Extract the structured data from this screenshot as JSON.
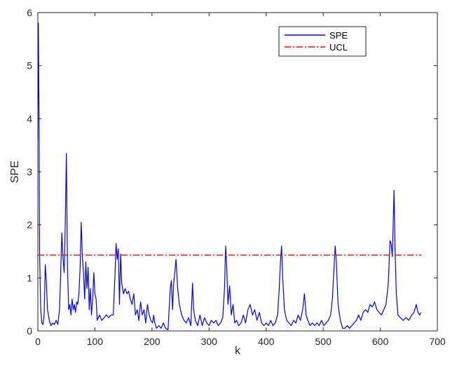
{
  "chart_data": {
    "type": "line",
    "title": "",
    "xlabel": "k",
    "ylabel": "SPE",
    "xlim": [
      0,
      700
    ],
    "ylim": [
      0,
      6
    ],
    "x_ticks": [
      "0",
      "100",
      "200",
      "300",
      "400",
      "500",
      "600",
      "700"
    ],
    "y_ticks": [
      "0",
      "1",
      "2",
      "3",
      "4",
      "5",
      "6"
    ],
    "grid": false,
    "legend_position": "top-right",
    "series": [
      {
        "name": "SPE",
        "color": "#0000ff",
        "style": "solid",
        "points": [
          [
            0,
            3.6
          ],
          [
            1,
            5.8
          ],
          [
            2,
            4.2
          ],
          [
            3,
            1.5
          ],
          [
            5,
            0.4
          ],
          [
            7,
            0.15
          ],
          [
            9,
            0.12
          ],
          [
            11,
            0.3
          ],
          [
            13,
            1.25
          ],
          [
            15,
            0.9
          ],
          [
            17,
            0.4
          ],
          [
            20,
            0.2
          ],
          [
            23,
            0.1
          ],
          [
            26,
            0.15
          ],
          [
            29,
            0.12
          ],
          [
            32,
            0.2
          ],
          [
            35,
            0.12
          ],
          [
            38,
            0.4
          ],
          [
            40,
            1.1
          ],
          [
            42,
            1.85
          ],
          [
            44,
            1.4
          ],
          [
            46,
            1.1
          ],
          [
            48,
            2.0
          ],
          [
            50,
            3.35
          ],
          [
            52,
            1.2
          ],
          [
            54,
            0.4
          ],
          [
            56,
            0.5
          ],
          [
            58,
            0.3
          ],
          [
            60,
            0.6
          ],
          [
            62,
            0.4
          ],
          [
            64,
            0.5
          ],
          [
            66,
            0.35
          ],
          [
            68,
            0.55
          ],
          [
            70,
            0.5
          ],
          [
            72,
            0.7
          ],
          [
            74,
            1.2
          ],
          [
            76,
            2.05
          ],
          [
            78,
            1.4
          ],
          [
            80,
            1.1
          ],
          [
            82,
            0.6
          ],
          [
            84,
            1.3
          ],
          [
            86,
            0.8
          ],
          [
            88,
            1.2
          ],
          [
            90,
            0.4
          ],
          [
            92,
            0.8
          ],
          [
            94,
            0.3
          ],
          [
            96,
            0.6
          ],
          [
            98,
            1.1
          ],
          [
            100,
            0.7
          ],
          [
            102,
            0.6
          ],
          [
            104,
            0.2
          ],
          [
            108,
            0.3
          ],
          [
            112,
            0.2
          ],
          [
            116,
            0.25
          ],
          [
            120,
            0.3
          ],
          [
            124,
            0.25
          ],
          [
            128,
            0.3
          ],
          [
            132,
            0.3
          ],
          [
            135,
            1.0
          ],
          [
            137,
            1.65
          ],
          [
            139,
            1.35
          ],
          [
            141,
            1.55
          ],
          [
            143,
            0.5
          ],
          [
            145,
            1.45
          ],
          [
            147,
            0.9
          ],
          [
            150,
            0.7
          ],
          [
            153,
            0.8
          ],
          [
            156,
            0.7
          ],
          [
            159,
            0.75
          ],
          [
            162,
            0.6
          ],
          [
            165,
            0.5
          ],
          [
            168,
            0.7
          ],
          [
            171,
            0.3
          ],
          [
            174,
            0.4
          ],
          [
            177,
            0.2
          ],
          [
            180,
            0.55
          ],
          [
            183,
            0.3
          ],
          [
            186,
            0.4
          ],
          [
            189,
            0.15
          ],
          [
            192,
            0.5
          ],
          [
            195,
            0.3
          ],
          [
            198,
            0.2
          ],
          [
            201,
            0.15
          ],
          [
            203,
            0.3
          ],
          [
            205,
            0.15
          ],
          [
            208,
            0.05
          ],
          [
            212,
            0.1
          ],
          [
            216,
            0.05
          ],
          [
            220,
            0.15
          ],
          [
            224,
            0.05
          ],
          [
            228,
            0.02
          ],
          [
            232,
            0.8
          ],
          [
            234,
            0.95
          ],
          [
            236,
            0.4
          ],
          [
            238,
            0.9
          ],
          [
            240,
            1.1
          ],
          [
            242,
            1.35
          ],
          [
            245,
            0.8
          ],
          [
            248,
            0.5
          ],
          [
            252,
            0.3
          ],
          [
            256,
            0.2
          ],
          [
            260,
            0.15
          ],
          [
            264,
            0.25
          ],
          [
            268,
            0.1
          ],
          [
            271,
            0.9
          ],
          [
            273,
            0.4
          ],
          [
            276,
            0.2
          ],
          [
            280,
            0.1
          ],
          [
            284,
            0.3
          ],
          [
            288,
            0.1
          ],
          [
            292,
            0.25
          ],
          [
            296,
            0.15
          ],
          [
            300,
            0.1
          ],
          [
            304,
            0.2
          ],
          [
            308,
            0.15
          ],
          [
            312,
            0.2
          ],
          [
            316,
            0.1
          ],
          [
            320,
            0.15
          ],
          [
            324,
            0.25
          ],
          [
            327,
            0.8
          ],
          [
            329,
            1.6
          ],
          [
            331,
            1.2
          ],
          [
            333,
            0.5
          ],
          [
            336,
            0.85
          ],
          [
            339,
            0.3
          ],
          [
            342,
            0.5
          ],
          [
            345,
            0.15
          ],
          [
            348,
            0.2
          ],
          [
            352,
            0.1
          ],
          [
            356,
            0.15
          ],
          [
            360,
            0.3
          ],
          [
            364,
            0.15
          ],
          [
            368,
            0.4
          ],
          [
            372,
            0.5
          ],
          [
            376,
            0.3
          ],
          [
            380,
            0.4
          ],
          [
            384,
            0.2
          ],
          [
            388,
            0.35
          ],
          [
            392,
            0.15
          ],
          [
            396,
            0.1
          ],
          [
            400,
            0.15
          ],
          [
            404,
            0.1
          ],
          [
            408,
            0.2
          ],
          [
            412,
            0.1
          ],
          [
            416,
            0.15
          ],
          [
            420,
            0.3
          ],
          [
            423,
            0.8
          ],
          [
            425,
            1.3
          ],
          [
            427,
            1.6
          ],
          [
            429,
            1.0
          ],
          [
            432,
            0.4
          ],
          [
            436,
            0.2
          ],
          [
            440,
            0.15
          ],
          [
            444,
            0.1
          ],
          [
            448,
            0.2
          ],
          [
            452,
            0.15
          ],
          [
            456,
            0.3
          ],
          [
            460,
            0.2
          ],
          [
            464,
            0.4
          ],
          [
            467,
            0.7
          ],
          [
            470,
            0.3
          ],
          [
            473,
            0.2
          ],
          [
            477,
            0.1
          ],
          [
            481,
            0.15
          ],
          [
            485,
            0.1
          ],
          [
            489,
            0.15
          ],
          [
            493,
            0.1
          ],
          [
            497,
            0.2
          ],
          [
            501,
            0.1
          ],
          [
            505,
            0.15
          ],
          [
            509,
            0.2
          ],
          [
            513,
            0.3
          ],
          [
            516,
            0.6
          ],
          [
            519,
            1.2
          ],
          [
            521,
            1.6
          ],
          [
            523,
            1.3
          ],
          [
            526,
            0.5
          ],
          [
            530,
            0.2
          ],
          [
            534,
            0.05
          ],
          [
            538,
            0.05
          ],
          [
            542,
            0.1
          ],
          [
            546,
            0.05
          ],
          [
            550,
            0.1
          ],
          [
            554,
            0.15
          ],
          [
            558,
            0.2
          ],
          [
            562,
            0.3
          ],
          [
            566,
            0.2
          ],
          [
            570,
            0.35
          ],
          [
            574,
            0.4
          ],
          [
            578,
            0.35
          ],
          [
            582,
            0.5
          ],
          [
            586,
            0.45
          ],
          [
            590,
            0.55
          ],
          [
            594,
            0.4
          ],
          [
            598,
            0.35
          ],
          [
            602,
            0.3
          ],
          [
            606,
            0.4
          ],
          [
            610,
            0.5
          ],
          [
            614,
            0.9
          ],
          [
            617,
            1.7
          ],
          [
            619,
            1.65
          ],
          [
            621,
            1.4
          ],
          [
            623,
            2.2
          ],
          [
            624,
            2.65
          ],
          [
            626,
            1.5
          ],
          [
            628,
            0.7
          ],
          [
            631,
            0.3
          ],
          [
            635,
            0.25
          ],
          [
            640,
            0.2
          ],
          [
            645,
            0.25
          ],
          [
            650,
            0.2
          ],
          [
            655,
            0.3
          ],
          [
            659,
            0.35
          ],
          [
            663,
            0.5
          ],
          [
            666,
            0.35
          ],
          [
            669,
            0.3
          ],
          [
            671,
            0.35
          ]
        ]
      },
      {
        "name": "UCL",
        "color": "#ff0000",
        "style": "dash-dot",
        "points": [
          [
            0,
            1.43
          ],
          [
            672,
            1.43
          ]
        ]
      }
    ]
  }
}
